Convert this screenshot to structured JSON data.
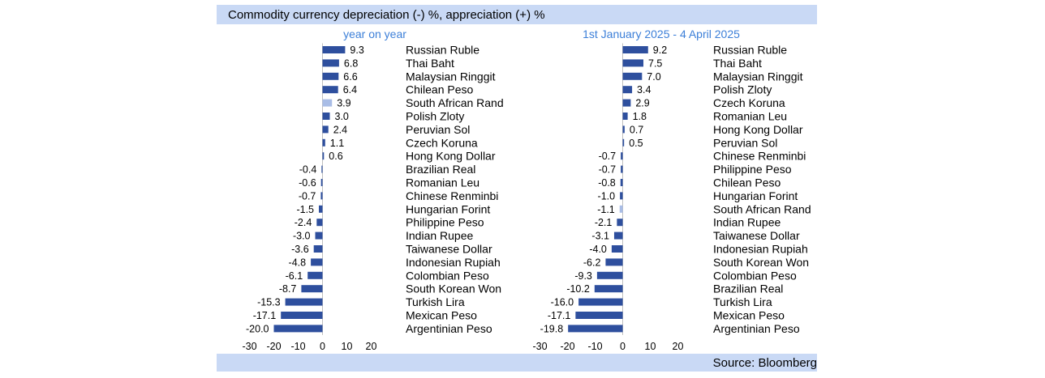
{
  "header": {
    "title": "Commodity currency depreciation (-) %, appreciation (+) %"
  },
  "footer": {
    "source": "Source: Bloomberg"
  },
  "colors": {
    "bar": "#2e4f9e",
    "highlight": "#a9bde6",
    "band": "#c9d9f5",
    "subtitle": "#3c7fd8"
  },
  "chart_data": [
    {
      "type": "bar",
      "orientation": "horizontal",
      "title": "year on year",
      "xlim": [
        -30,
        20
      ],
      "xticks": [
        -30,
        -20,
        -10,
        0,
        10,
        20
      ],
      "highlight": "South African Rand",
      "categories": [
        "Russian Ruble",
        "Thai Baht",
        "Malaysian Ringgit",
        "Chilean Peso",
        "South African Rand",
        "Polish Zloty",
        "Peruvian Sol",
        "Czech Koruna",
        "Hong Kong Dollar",
        "Brazilian Real",
        "Romanian Leu",
        "Chinese Renminbi",
        "Hungarian Forint",
        "Philippine Peso",
        "Indian Rupee",
        "Taiwanese Dollar",
        "Indonesian Rupiah",
        "Colombian Peso",
        "South Korean Won",
        "Turkish Lira",
        "Mexican Peso",
        "Argentinian Peso"
      ],
      "values": [
        9.3,
        6.8,
        6.6,
        6.4,
        3.9,
        3.0,
        2.4,
        1.1,
        0.6,
        -0.4,
        -0.6,
        -0.7,
        -1.5,
        -2.4,
        -3.0,
        -3.6,
        -4.8,
        -6.1,
        -8.7,
        -15.3,
        -17.1,
        -20.0
      ],
      "value_labels": [
        "9.3",
        "6.8",
        "6.6",
        "6.4",
        "3.9",
        "3.0",
        "2.4",
        "1.1",
        "0.6",
        "-0.4",
        "-0.6",
        "-0.7",
        "-1.5",
        "-2.4",
        "-3.0",
        "-3.6",
        "-4.8",
        "-6.1",
        "-8.7",
        "-15.3",
        "-17.1",
        "-20.0"
      ]
    },
    {
      "type": "bar",
      "orientation": "horizontal",
      "title": "1st January 2025 - 4 April 2025",
      "xlim": [
        -30,
        20
      ],
      "xticks": [
        -30,
        -20,
        -10,
        0,
        10,
        20
      ],
      "highlight": "South African Rand",
      "categories": [
        "Russian Ruble",
        "Thai Baht",
        "Malaysian Ringgit",
        "Polish Zloty",
        "Czech Koruna",
        "Romanian Leu",
        "Hong Kong Dollar",
        "Peruvian Sol",
        "Chinese Renminbi",
        "Philippine Peso",
        "Chilean Peso",
        "Hungarian Forint",
        "South African Rand",
        "Indian Rupee",
        "Taiwanese Dollar",
        "Indonesian Rupiah",
        "South Korean Won",
        "Colombian Peso",
        "Brazilian Real",
        "Turkish Lira",
        "Mexican Peso",
        "Argentinian Peso"
      ],
      "values": [
        9.2,
        7.5,
        7.0,
        3.4,
        2.9,
        1.8,
        0.7,
        0.5,
        -0.7,
        -0.7,
        -0.8,
        -1.0,
        -1.1,
        -2.1,
        -3.1,
        -4.0,
        -6.2,
        -9.3,
        -10.2,
        -16.0,
        -17.1,
        -19.8
      ],
      "value_labels": [
        "9.2",
        "7.5",
        "7.0",
        "3.4",
        "2.9",
        "1.8",
        "0.7",
        "0.5",
        "-0.7",
        "-0.7",
        "-0.8",
        "-1.0",
        "-1.1",
        "-2.1",
        "-3.1",
        "-4.0",
        "-6.2",
        "-9.3",
        "-10.2",
        "-16.0",
        "-17.1",
        "-19.8"
      ]
    }
  ]
}
